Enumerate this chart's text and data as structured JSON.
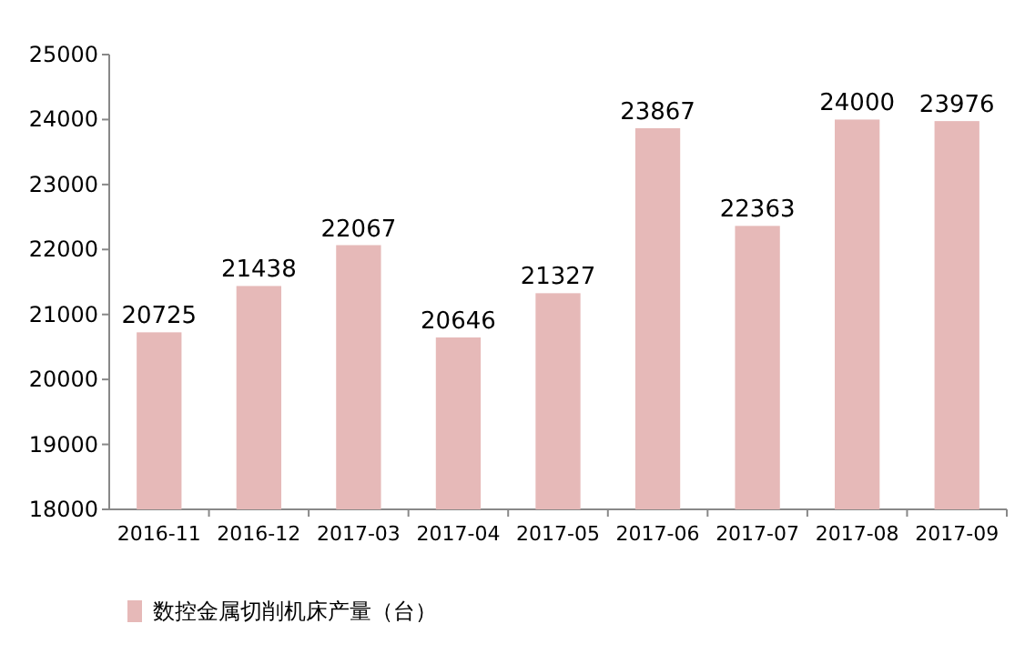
{
  "chart_data": {
    "type": "bar",
    "categories": [
      "2016-11",
      "2016-12",
      "2017-03",
      "2017-04",
      "2017-05",
      "2017-06",
      "2017-07",
      "2017-08",
      "2017-09"
    ],
    "series": [
      {
        "name": "数控金属切削机床产量（台）",
        "color": "#e6b9b8",
        "values": [
          20725,
          21438,
          22067,
          20646,
          21327,
          23867,
          22363,
          24000,
          23976
        ]
      }
    ],
    "ylim": [
      18000,
      25000
    ],
    "yticks": [
      18000,
      19000,
      20000,
      21000,
      22000,
      23000,
      24000,
      25000
    ],
    "data_labels": true,
    "grid": false,
    "legend": "bottom left"
  }
}
